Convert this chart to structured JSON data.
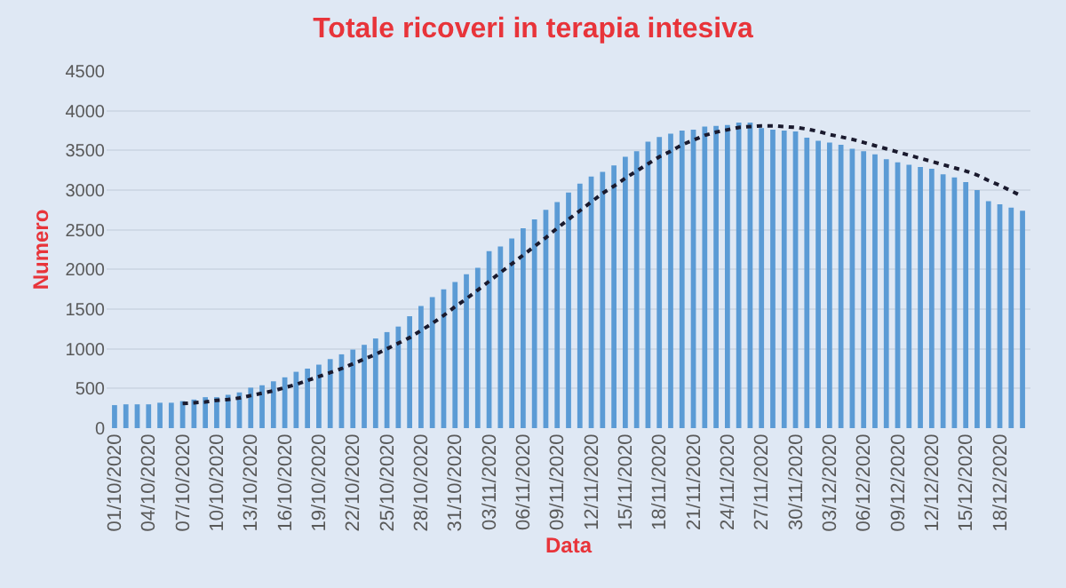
{
  "chart_data": {
    "type": "bar",
    "title": "Totale ricoveri in terapia intesiva",
    "xlabel": "Data",
    "ylabel": "Numero",
    "categories": [
      "01/10/2020",
      null,
      null,
      "04/10/2020",
      null,
      null,
      "07/10/2020",
      null,
      null,
      "10/10/2020",
      null,
      null,
      "13/10/2020",
      null,
      null,
      "16/10/2020",
      null,
      null,
      "19/10/2020",
      null,
      null,
      "22/10/2020",
      null,
      null,
      "25/10/2020",
      null,
      null,
      "28/10/2020",
      null,
      null,
      "31/10/2020",
      null,
      null,
      "03/11/2020",
      null,
      null,
      "06/11/2020",
      null,
      null,
      "09/11/2020",
      null,
      null,
      "12/11/2020",
      null,
      null,
      "15/11/2020",
      null,
      null,
      "18/11/2020",
      null,
      null,
      "21/11/2020",
      null,
      null,
      "24/11/2020",
      null,
      null,
      "27/11/2020",
      null,
      null,
      "30/11/2020",
      null,
      null,
      "03/12/2020",
      null,
      null,
      "06/12/2020",
      null,
      null,
      "09/12/2020",
      null,
      null,
      "12/12/2020",
      null,
      null,
      "15/12/2020",
      null,
      null,
      "18/12/2020",
      null,
      null
    ],
    "series": [
      {
        "color": "#5b9bd5",
        "values": [
          290,
          300,
          300,
          300,
          320,
          320,
          340,
          360,
          390,
          390,
          420,
          450,
          510,
          540,
          590,
          640,
          710,
          750,
          800,
          870,
          930,
          990,
          1050,
          1130,
          1210,
          1280,
          1410,
          1540,
          1650,
          1750,
          1840,
          1940,
          2020,
          2230,
          2290,
          2390,
          2520,
          2630,
          2750,
          2850,
          2970,
          3080,
          3170,
          3230,
          3310,
          3420,
          3490,
          3610,
          3670,
          3710,
          3750,
          3760,
          3800,
          3810,
          3820,
          3850,
          3850,
          3780,
          3760,
          3750,
          3740,
          3660,
          3620,
          3600,
          3570,
          3520,
          3490,
          3450,
          3390,
          3350,
          3320,
          3290,
          3270,
          3200,
          3160,
          3100,
          3000,
          2860,
          2820,
          2780,
          2740
        ]
      },
      {
        "type": "line",
        "color": "#1a1a2e",
        "line_style": "dotted",
        "marker": "none",
        "values": [
          null,
          null,
          null,
          null,
          null,
          null,
          310,
          320,
          330,
          350,
          360,
          380,
          410,
          440,
          470,
          510,
          550,
          600,
          650,
          700,
          750,
          810,
          870,
          930,
          1000,
          1070,
          1140,
          1230,
          1320,
          1420,
          1530,
          1630,
          1740,
          1850,
          1960,
          2070,
          2180,
          2290,
          2400,
          2520,
          2630,
          2740,
          2850,
          2960,
          3050,
          3150,
          3240,
          3330,
          3420,
          3490,
          3570,
          3630,
          3690,
          3730,
          3760,
          3790,
          3800,
          3810,
          3810,
          3800,
          3790,
          3770,
          3740,
          3700,
          3670,
          3640,
          3600,
          3560,
          3520,
          3480,
          3440,
          3400,
          3360,
          3320,
          3280,
          3240,
          3190,
          3120,
          3060,
          2990,
          2920
        ]
      }
    ],
    "ylim": [
      0,
      4500
    ],
    "yticks": [
      0,
      500,
      1000,
      1500,
      2000,
      2500,
      3000,
      3500,
      4000,
      4500
    ],
    "grid": "y"
  }
}
